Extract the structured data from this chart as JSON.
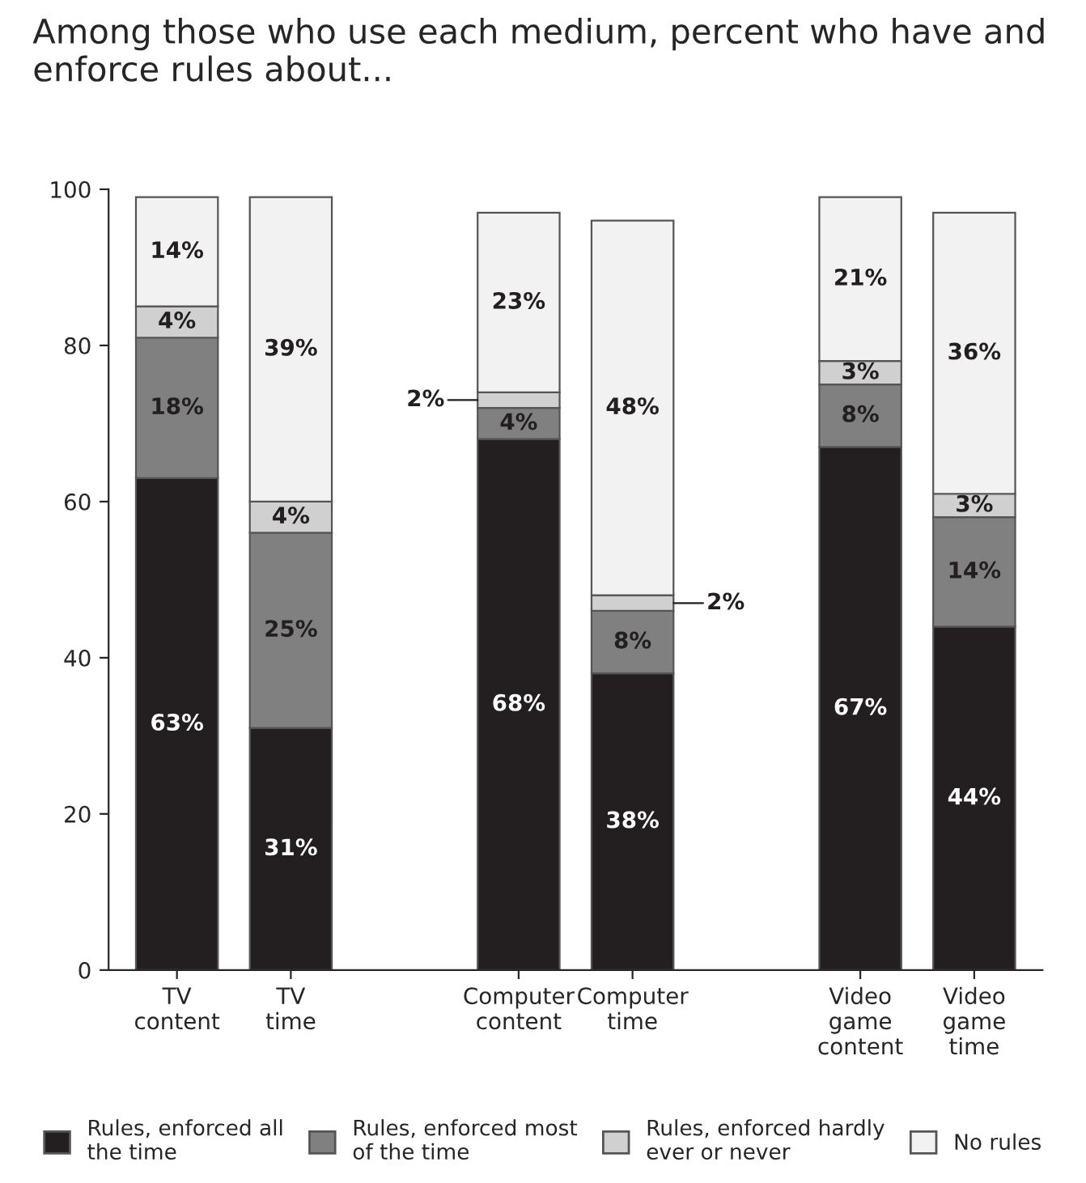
{
  "chart_data": {
    "type": "bar",
    "stacked": true,
    "title": "Among those who use each medium, percent who have and enforce rules about...",
    "categories": [
      "TV\ncontent",
      "TV\ntime",
      null,
      "Computer\ncontent",
      "Computer\ntime",
      null,
      "Video\ngame\ncontent",
      "Video\ngame\ntime"
    ],
    "series": [
      {
        "name": "Rules, enforced all\nthe time",
        "color": "#231f20",
        "values": [
          63,
          31,
          null,
          68,
          38,
          null,
          67,
          44
        ],
        "value_labels": [
          "63%",
          "31%",
          null,
          "68%",
          "38%",
          null,
          "67%",
          "44%"
        ]
      },
      {
        "name": "Rules, enforced most\nof the time",
        "color": "#808080",
        "values": [
          18,
          25,
          null,
          4,
          8,
          null,
          8,
          14
        ],
        "value_labels": [
          "18%",
          "25%",
          null,
          "4%",
          "8%",
          null,
          "8%",
          "14%"
        ]
      },
      {
        "name": "Rules, enforced hardly\never or never",
        "color": "#d0d0d0",
        "values": [
          4,
          4,
          null,
          2,
          2,
          null,
          3,
          3
        ],
        "value_labels": [
          "4%",
          "4%",
          null,
          "2%",
          "2%",
          null,
          "3%",
          "3%"
        ]
      },
      {
        "name": "No rules",
        "color": "#f2f2f2",
        "values": [
          14,
          39,
          null,
          23,
          48,
          null,
          21,
          36
        ],
        "value_labels": [
          "14%",
          "39%",
          null,
          "23%",
          "48%",
          null,
          "21%",
          "36%"
        ]
      }
    ],
    "ylim": [
      0,
      100
    ],
    "yticks": [
      0,
      20,
      40,
      60,
      80,
      100
    ],
    "grid": false,
    "legend": "bottom"
  }
}
